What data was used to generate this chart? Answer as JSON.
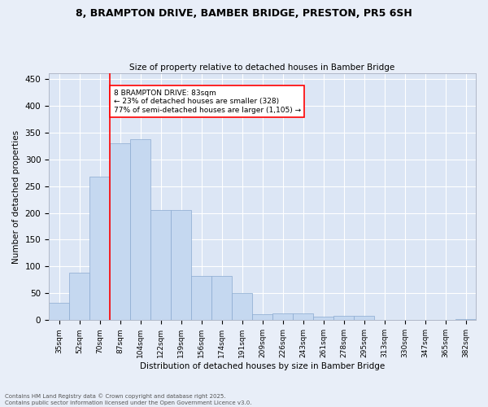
{
  "title_line1": "8, BRAMPTON DRIVE, BAMBER BRIDGE, PRESTON, PR5 6SH",
  "title_line2": "Size of property relative to detached houses in Bamber Bridge",
  "xlabel": "Distribution of detached houses by size in Bamber Bridge",
  "ylabel": "Number of detached properties",
  "background_color": "#dce6f5",
  "fig_background_color": "#e8eef8",
  "bar_color": "#c5d8f0",
  "bar_edge_color": "#8aaad0",
  "grid_color": "#ffffff",
  "categories": [
    "35sqm",
    "52sqm",
    "70sqm",
    "87sqm",
    "104sqm",
    "122sqm",
    "139sqm",
    "156sqm",
    "174sqm",
    "191sqm",
    "209sqm",
    "226sqm",
    "243sqm",
    "261sqm",
    "278sqm",
    "295sqm",
    "313sqm",
    "330sqm",
    "347sqm",
    "365sqm",
    "382sqm"
  ],
  "values": [
    33,
    88,
    268,
    330,
    338,
    205,
    205,
    83,
    83,
    50,
    11,
    13,
    13,
    7,
    8,
    8,
    0,
    0,
    0,
    0,
    2
  ],
  "ylim": [
    0,
    460
  ],
  "yticks": [
    0,
    50,
    100,
    150,
    200,
    250,
    300,
    350,
    400,
    450
  ],
  "annotation_line1": "8 BRAMPTON DRIVE: 83sqm",
  "annotation_line2": "← 23% of detached houses are smaller (328)",
  "annotation_line3": "77% of semi-detached houses are larger (1,105) →",
  "vline_position": 2.5,
  "footnote": "Contains HM Land Registry data © Crown copyright and database right 2025.\nContains public sector information licensed under the Open Government Licence v3.0."
}
